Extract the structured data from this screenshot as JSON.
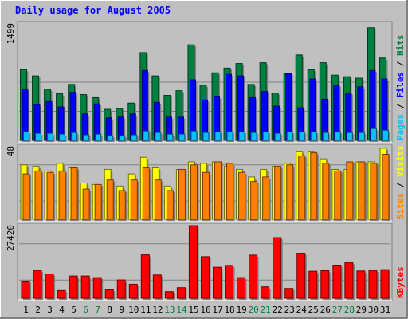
{
  "colors": {
    "background": "#c0c0c0",
    "title": "#0000ff",
    "hits": "#008040",
    "files": "#0000ff",
    "pages": "#00c0ff",
    "visits": "#ffff00",
    "sites": "#ff8000",
    "kbytes": "#ff0000",
    "weekend_label": "#008040",
    "gridline": "#808080"
  },
  "chart_data": {
    "type": "bar",
    "title": "Daily usage for August 2005",
    "categories": [
      "1",
      "2",
      "3",
      "4",
      "5",
      "6",
      "7",
      "8",
      "9",
      "10",
      "11",
      "12",
      "13",
      "14",
      "15",
      "16",
      "17",
      "18",
      "19",
      "20",
      "21",
      "22",
      "23",
      "24",
      "25",
      "26",
      "27",
      "28",
      "29",
      "30",
      "31"
    ],
    "weekend_days": [
      "6",
      "7",
      "13",
      "14",
      "20",
      "21",
      "27",
      "28"
    ],
    "panels": [
      {
        "name": "hits-files-pages",
        "max_label": "1499",
        "ylim": [
          0,
          1499
        ],
        "legend": [
          "Pages",
          "/",
          "Files",
          "/",
          "Hits"
        ],
        "series": [
          {
            "name": "Hits",
            "values": [
              910,
              830,
              660,
              600,
              720,
              590,
              550,
              400,
              410,
              480,
              1130,
              830,
              580,
              640,
              1230,
              710,
              870,
              930,
              990,
              720,
              1000,
              610,
              860,
              1100,
              910,
              1000,
              840,
              820,
              800,
              1450,
              1060
            ]
          },
          {
            "name": "Files",
            "values": [
              660,
              460,
              500,
              430,
              620,
              340,
              470,
              290,
              300,
              340,
              900,
              490,
              300,
              300,
              780,
              520,
              560,
              850,
              830,
              550,
              630,
              440,
              860,
              420,
              790,
              530,
              710,
              610,
              690,
              900,
              790
            ]
          },
          {
            "name": "Pages",
            "values": [
              110,
              90,
              90,
              80,
              100,
              70,
              80,
              60,
              60,
              70,
              120,
              100,
              80,
              80,
              120,
              100,
              110,
              110,
              110,
              100,
              110,
              90,
              110,
              110,
              110,
              100,
              110,
              100,
              100,
              150,
              130
            ]
          }
        ]
      },
      {
        "name": "visits-sites",
        "max_label": "48",
        "ylim": [
          0,
          48
        ],
        "legend": [
          "Sites",
          "/",
          "Visits"
        ],
        "series": [
          {
            "name": "Visits",
            "values": [
              36,
              35,
              32,
              37,
              34,
              24,
              23,
              33,
              22,
              30,
              41,
              34,
              22,
              33,
              38,
              37,
              38,
              35,
              33,
              28,
              33,
              35,
              37,
              45,
              45,
              40,
              33,
              33,
              38,
              38,
              47
            ]
          },
          {
            "name": "Sites",
            "values": [
              30,
              32,
              31,
              32,
              34,
              20,
              23,
              26,
              19,
              26,
              34,
              26,
              19,
              33,
              36,
              31,
              38,
              37,
              31,
              25,
              28,
              35,
              36,
              42,
              44,
              37,
              32,
              38,
              38,
              37,
              43
            ]
          }
        ]
      },
      {
        "name": "kbytes",
        "max_label": "27420",
        "ylim": [
          0,
          27420
        ],
        "legend": [
          "KBytes"
        ],
        "series": [
          {
            "name": "KBytes",
            "values": [
              6500,
              10500,
              9200,
              2900,
              8400,
              8400,
              7800,
              3200,
              6900,
              5300,
              16400,
              8800,
              2500,
              4000,
              27420,
              15700,
              11700,
              12400,
              7800,
              16300,
              4300,
              22900,
              3700,
              17000,
              10200,
              10400,
              12500,
              13500,
              10300,
              10500,
              10800
            ]
          }
        ]
      }
    ]
  }
}
